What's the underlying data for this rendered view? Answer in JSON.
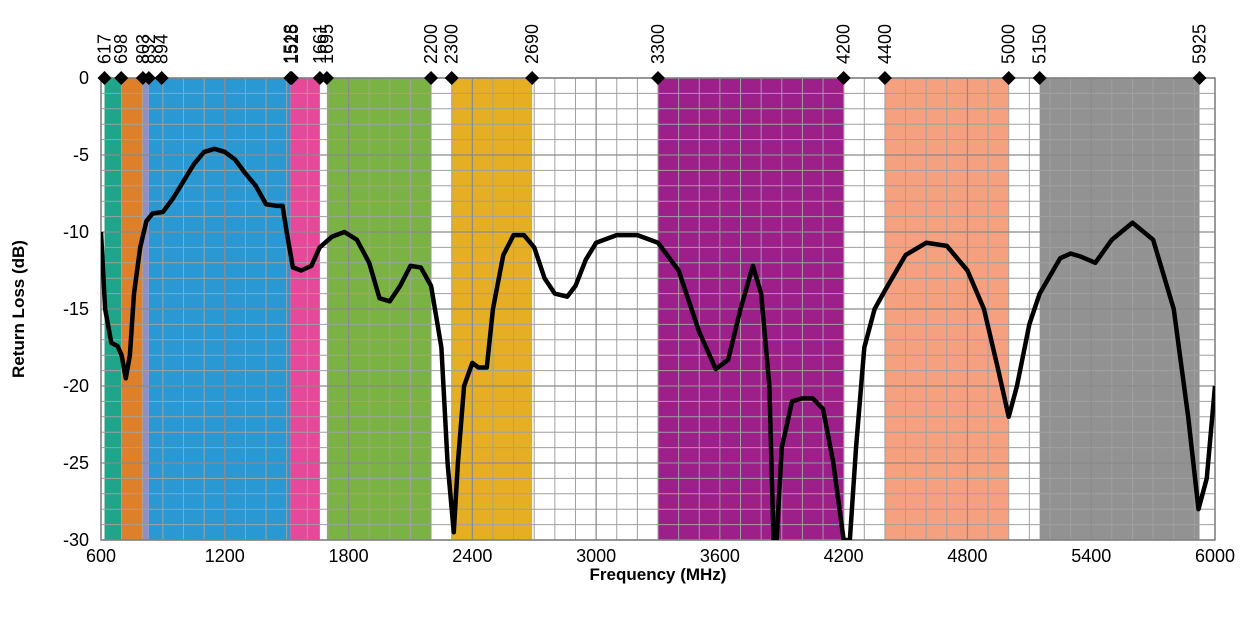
{
  "chart_data": {
    "type": "line",
    "x_label": "Frequency (MHz)",
    "y_label": "Return Loss (dB)",
    "xlim": [
      600,
      6000
    ],
    "ylim": [
      -30,
      0
    ],
    "xticks": [
      600,
      1200,
      1800,
      2400,
      3000,
      3600,
      4200,
      4800,
      5400,
      6000
    ],
    "yticks": [
      -30,
      -25,
      -20,
      -15,
      -10,
      -5,
      0
    ],
    "grid": true,
    "minor_grid_step": {
      "x": 100,
      "y": 1
    },
    "markers": [
      617,
      698,
      803,
      832,
      894,
      1518,
      1525,
      1661,
      1695,
      2200,
      2300,
      2690,
      3300,
      4200,
      4400,
      5000,
      5150,
      5925
    ],
    "bands": [
      {
        "from": 617,
        "to": 698,
        "color": "#1fa589"
      },
      {
        "from": 698,
        "to": 803,
        "color": "#de7f2a"
      },
      {
        "from": 803,
        "to": 832,
        "color": "#8f8fc4"
      },
      {
        "from": 832,
        "to": 1518,
        "color": "#2a98d2"
      },
      {
        "from": 1518,
        "to": 1661,
        "color": "#e6489a"
      },
      {
        "from": 1695,
        "to": 2200,
        "color": "#7ab343"
      },
      {
        "from": 2300,
        "to": 2690,
        "color": "#e6ae22"
      },
      {
        "from": 3300,
        "to": 4200,
        "color": "#9c1f8a"
      },
      {
        "from": 4400,
        "to": 5000,
        "color": "#f5a07f"
      },
      {
        "from": 5150,
        "to": 5925,
        "color": "#929292"
      }
    ],
    "x": [
      600,
      620,
      650,
      680,
      700,
      720,
      740,
      760,
      790,
      820,
      850,
      900,
      950,
      1000,
      1050,
      1100,
      1150,
      1200,
      1250,
      1300,
      1350,
      1400,
      1450,
      1480,
      1500,
      1530,
      1570,
      1620,
      1660,
      1720,
      1780,
      1840,
      1900,
      1950,
      2000,
      2050,
      2100,
      2150,
      2200,
      2250,
      2280,
      2310,
      2330,
      2360,
      2400,
      2430,
      2470,
      2500,
      2550,
      2600,
      2650,
      2700,
      2750,
      2800,
      2860,
      2900,
      2950,
      3000,
      3100,
      3200,
      3300,
      3400,
      3500,
      3580,
      3640,
      3700,
      3760,
      3800,
      3840,
      3860,
      3875,
      3900,
      3950,
      4000,
      4050,
      4100,
      4150,
      4200,
      4230,
      4260,
      4300,
      4350,
      4400,
      4500,
      4600,
      4700,
      4800,
      4880,
      4950,
      5000,
      5040,
      5100,
      5150,
      5250,
      5300,
      5350,
      5420,
      5500,
      5600,
      5700,
      5800,
      5870,
      5920,
      5960,
      6000
    ],
    "series": [
      {
        "color": "#000000",
        "values": [
          -10,
          -15,
          -17.2,
          -17.4,
          -18,
          -19.5,
          -18,
          -14,
          -11,
          -9.3,
          -8.8,
          -8.7,
          -7.8,
          -6.7,
          -5.6,
          -4.8,
          -4.6,
          -4.8,
          -5.3,
          -6.2,
          -7,
          -8.2,
          -8.3,
          -8.3,
          -10,
          -12.3,
          -12.5,
          -12.2,
          -11,
          -10.3,
          -10,
          -10.5,
          -12,
          -14.3,
          -14.5,
          -13.5,
          -12.2,
          -12.3,
          -13.5,
          -17.5,
          -25,
          -29.5,
          -25,
          -20,
          -18.5,
          -18.8,
          -18.8,
          -15,
          -11.5,
          -10.2,
          -10.2,
          -11,
          -13,
          -14,
          -14.2,
          -13.5,
          -11.8,
          -10.7,
          -10.2,
          -10.2,
          -10.7,
          -12.5,
          -16.5,
          -18.9,
          -18.3,
          -15,
          -12.2,
          -14,
          -20,
          -30,
          -30,
          -24,
          -21,
          -20.8,
          -20.8,
          -21.5,
          -25,
          -30,
          -30,
          -24,
          -17.5,
          -15,
          -13.8,
          -11.5,
          -10.7,
          -10.9,
          -12.5,
          -15,
          -19,
          -22,
          -20,
          -16,
          -14,
          -11.7,
          -11.4,
          -11.6,
          -12,
          -10.5,
          -9.4,
          -10.5,
          -15,
          -22,
          -28,
          -26,
          -20
        ]
      }
    ]
  }
}
